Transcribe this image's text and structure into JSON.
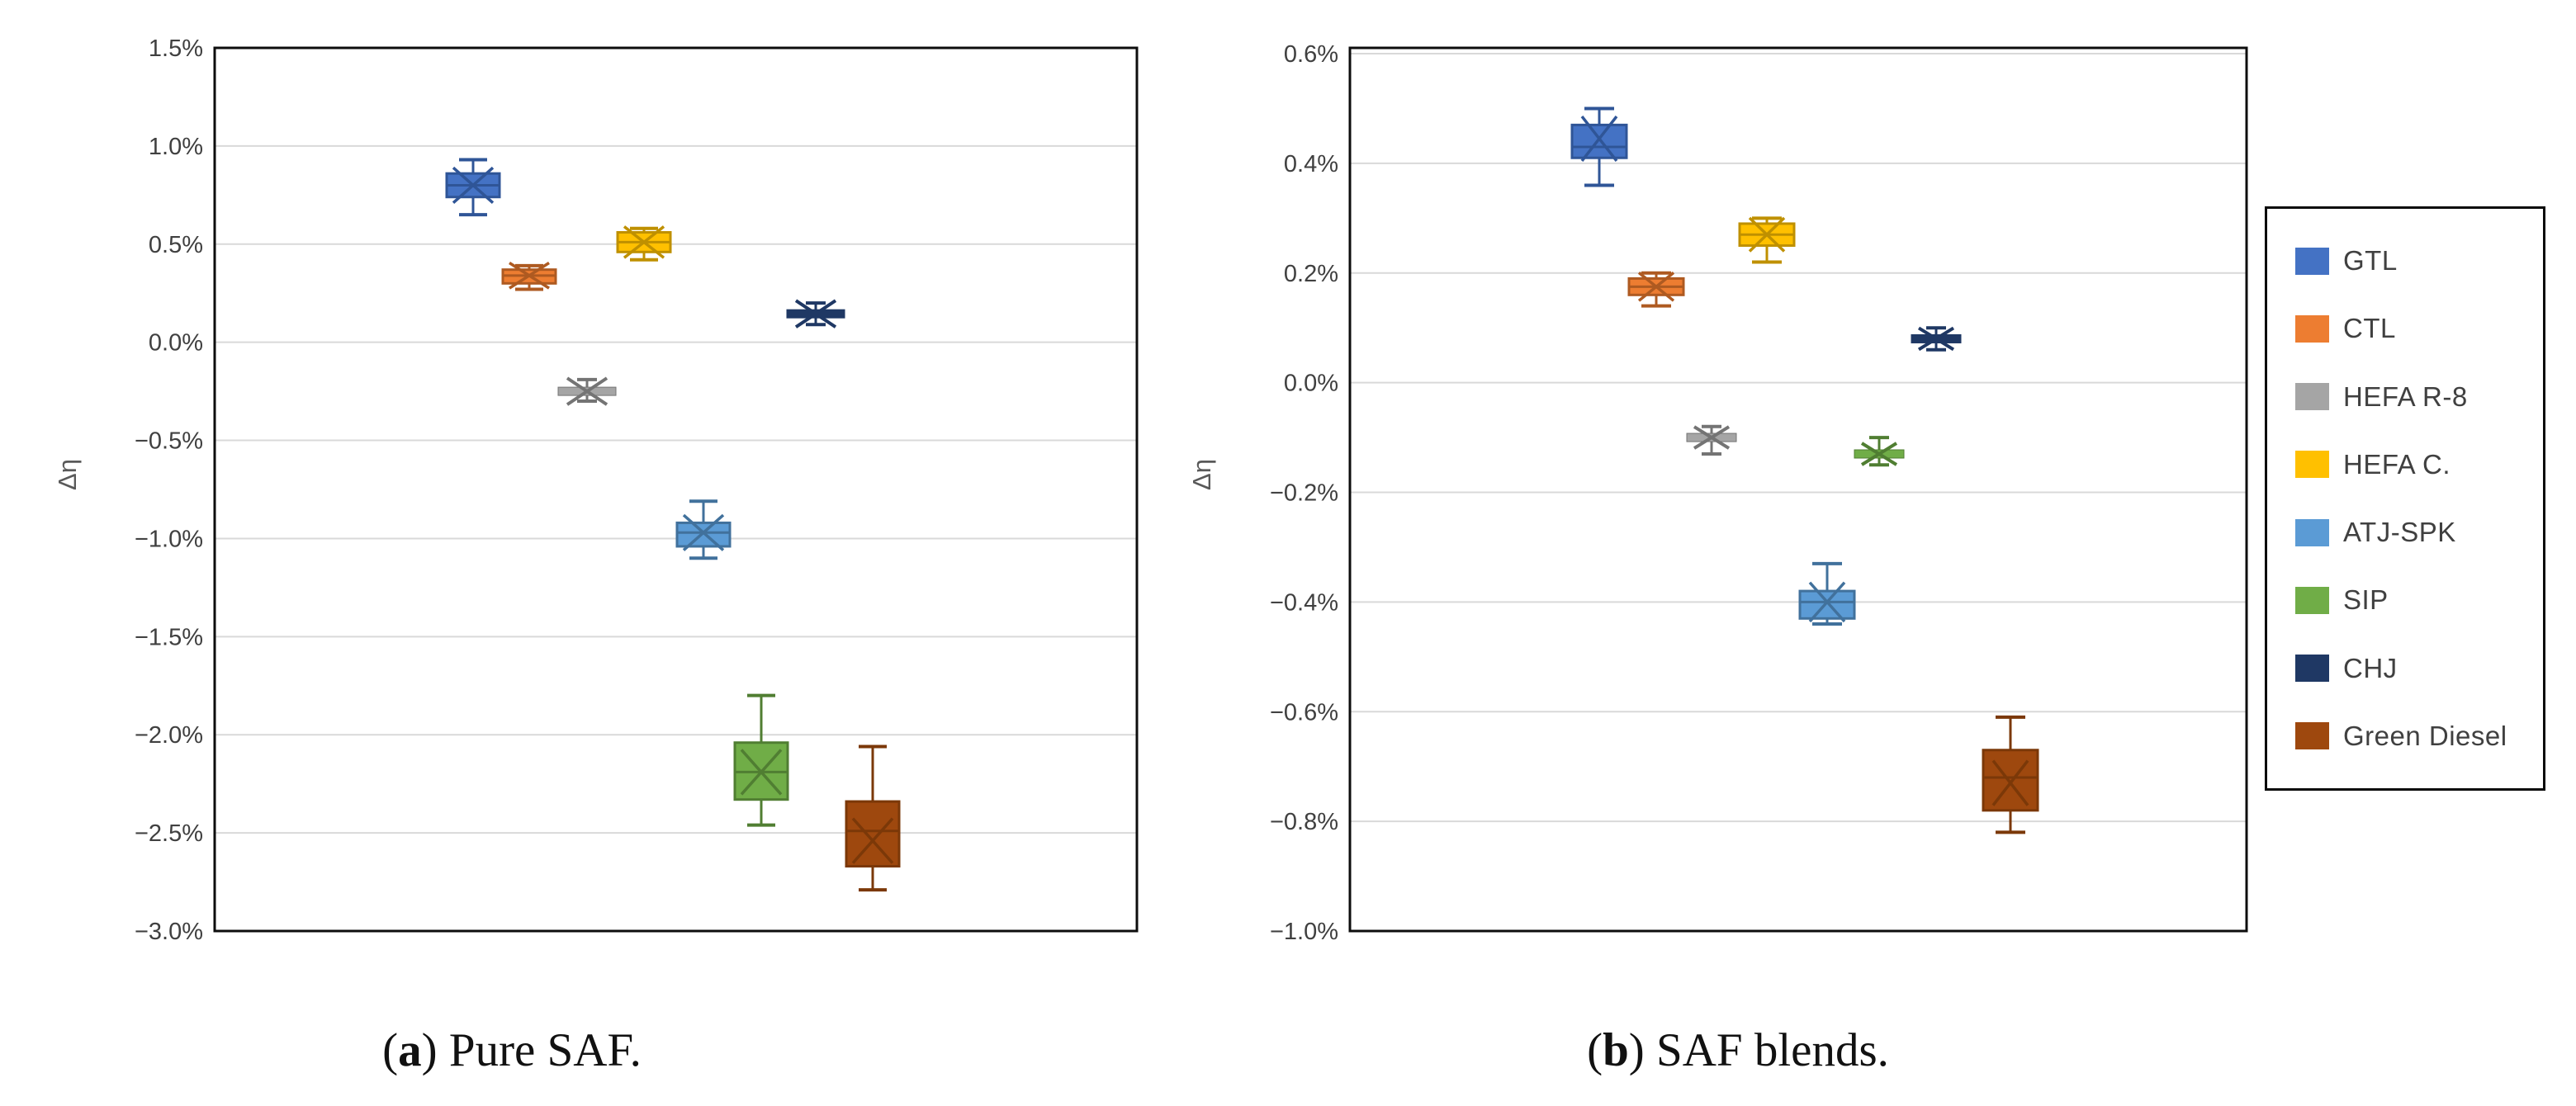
{
  "figure": {
    "background": "#ffffff",
    "grid_color": "#D9D9D9",
    "axis_border_color": "#0d0d0d",
    "tick_label_color": "#404040",
    "captions": {
      "a": {
        "open": "(",
        "letter": "a",
        "rest": ") Pure SAF."
      },
      "b": {
        "open": "(",
        "letter": "b",
        "rest": ") SAF blends."
      }
    }
  },
  "legend": {
    "items": [
      {
        "label": "GTL",
        "color": "#4472C4"
      },
      {
        "label": "CTL",
        "color": "#ED7D31"
      },
      {
        "label": "HEFA R-8",
        "color": "#A5A5A5"
      },
      {
        "label": "HEFA C.",
        "color": "#FFC000"
      },
      {
        "label": "ATJ-SPK",
        "color": "#5B9BD5"
      },
      {
        "label": "SIP",
        "color": "#70AD47"
      },
      {
        "label": "CHJ",
        "color": "#1F3864"
      },
      {
        "label": "Green Diesel",
        "color": "#9E480E"
      }
    ]
  },
  "chart_data": [
    {
      "type": "boxplot",
      "panel": "a",
      "title": "Pure SAF",
      "ylabel": "Δη",
      "unit": "%",
      "grid": true,
      "ylim": [
        -3.0,
        1.5
      ],
      "ytick_values": [
        1.5,
        1.0,
        0.5,
        0.0,
        -0.5,
        -1.0,
        -1.5,
        -2.0,
        -2.5,
        -3.0
      ],
      "ytick_labels": [
        "1.5%",
        "1.0%",
        "0.5%",
        "0.0%",
        "−0.5%",
        "−1.0%",
        "−1.5%",
        "−2.0%",
        "−2.5%",
        "−3.0%"
      ],
      "series": [
        {
          "name": "GTL",
          "color": "#4472C4",
          "stroke": "#2F5597",
          "collapsed": false,
          "whisker_low": 0.65,
          "q1": 0.74,
          "median": 0.8,
          "q3": 0.86,
          "whisker_high": 0.93,
          "mean": 0.8
        },
        {
          "name": "CTL",
          "color": "#ED7D31",
          "stroke": "#AE5A21",
          "collapsed": false,
          "whisker_low": 0.27,
          "q1": 0.3,
          "median": 0.34,
          "q3": 0.37,
          "whisker_high": 0.39,
          "mean": 0.34
        },
        {
          "name": "HEFA R-8",
          "color": "#A5A5A5",
          "stroke": "#747474",
          "collapsed": true,
          "whisker_low": -0.3,
          "q1": -0.26,
          "median": -0.25,
          "q3": -0.24,
          "whisker_high": -0.19,
          "mean": -0.25
        },
        {
          "name": "HEFA C.",
          "color": "#FFC000",
          "stroke": "#BF9000",
          "collapsed": false,
          "whisker_low": 0.42,
          "q1": 0.46,
          "median": 0.51,
          "q3": 0.56,
          "whisker_high": 0.58,
          "mean": 0.51
        },
        {
          "name": "ATJ-SPK",
          "color": "#5B9BD5",
          "stroke": "#41719C",
          "collapsed": false,
          "whisker_low": -1.1,
          "q1": -1.04,
          "median": -0.97,
          "q3": -0.92,
          "whisker_high": -0.81,
          "mean": -0.97
        },
        {
          "name": "SIP",
          "color": "#70AD47",
          "stroke": "#507E32",
          "collapsed": false,
          "whisker_low": -2.46,
          "q1": -2.33,
          "median": -2.19,
          "q3": -2.04,
          "whisker_high": -1.8,
          "mean": -2.19
        },
        {
          "name": "CHJ",
          "color": "#1F3864",
          "stroke": "#1F3864",
          "collapsed": true,
          "whisker_low": 0.09,
          "q1": 0.13,
          "median": 0.145,
          "q3": 0.16,
          "whisker_high": 0.2,
          "mean": 0.145
        },
        {
          "name": "Green Diesel",
          "color": "#9E480E",
          "stroke": "#7B3808",
          "collapsed": false,
          "whisker_low": -2.79,
          "q1": -2.67,
          "median": -2.49,
          "q3": -2.34,
          "whisker_high": -2.06,
          "mean": -2.54
        }
      ]
    },
    {
      "type": "boxplot",
      "panel": "b",
      "title": "SAF blends",
      "ylabel": "Δη",
      "unit": "%",
      "grid": true,
      "ylim": [
        -1.0,
        0.6
      ],
      "ytick_values": [
        0.6,
        0.4,
        0.2,
        0.0,
        -0.2,
        -0.4,
        -0.6,
        -0.8,
        -1.0
      ],
      "ytick_labels": [
        "0.6%",
        "0.4%",
        "0.2%",
        "0.0%",
        "−0.2%",
        "−0.4%",
        "−0.6%",
        "−0.8%",
        "−1.0%"
      ],
      "series": [
        {
          "name": "GTL",
          "color": "#4472C4",
          "stroke": "#2F5597",
          "collapsed": false,
          "whisker_low": 0.36,
          "q1": 0.41,
          "median": 0.43,
          "q3": 0.47,
          "whisker_high": 0.5,
          "mean": 0.445
        },
        {
          "name": "CTL",
          "color": "#ED7D31",
          "stroke": "#AE5A21",
          "collapsed": false,
          "whisker_low": 0.14,
          "q1": 0.16,
          "median": 0.175,
          "q3": 0.19,
          "whisker_high": 0.2,
          "mean": 0.175
        },
        {
          "name": "HEFA R-8",
          "color": "#A5A5A5",
          "stroke": "#747474",
          "collapsed": true,
          "whisker_low": -0.13,
          "q1": -0.11,
          "median": -0.1,
          "q3": -0.09,
          "whisker_high": -0.08,
          "mean": -0.1
        },
        {
          "name": "HEFA C.",
          "color": "#FFC000",
          "stroke": "#BF9000",
          "collapsed": false,
          "whisker_low": 0.22,
          "q1": 0.25,
          "median": 0.27,
          "q3": 0.29,
          "whisker_high": 0.3,
          "mean": 0.27
        },
        {
          "name": "ATJ-SPK",
          "color": "#5B9BD5",
          "stroke": "#41719C",
          "collapsed": false,
          "whisker_low": -0.44,
          "q1": -0.43,
          "median": -0.4,
          "q3": -0.38,
          "whisker_high": -0.33,
          "mean": -0.4
        },
        {
          "name": "SIP",
          "color": "#70AD47",
          "stroke": "#507E32",
          "collapsed": true,
          "whisker_low": -0.15,
          "q1": -0.14,
          "median": -0.13,
          "q3": -0.12,
          "whisker_high": -0.1,
          "mean": -0.13
        },
        {
          "name": "CHJ",
          "color": "#1F3864",
          "stroke": "#1F3864",
          "collapsed": true,
          "whisker_low": 0.06,
          "q1": 0.07,
          "median": 0.08,
          "q3": 0.09,
          "whisker_high": 0.1,
          "mean": 0.08
        },
        {
          "name": "Green Diesel",
          "color": "#9E480E",
          "stroke": "#7B3808",
          "collapsed": false,
          "whisker_low": -0.82,
          "q1": -0.78,
          "median": -0.72,
          "q3": -0.67,
          "whisker_high": -0.61,
          "mean": -0.73
        }
      ]
    }
  ]
}
